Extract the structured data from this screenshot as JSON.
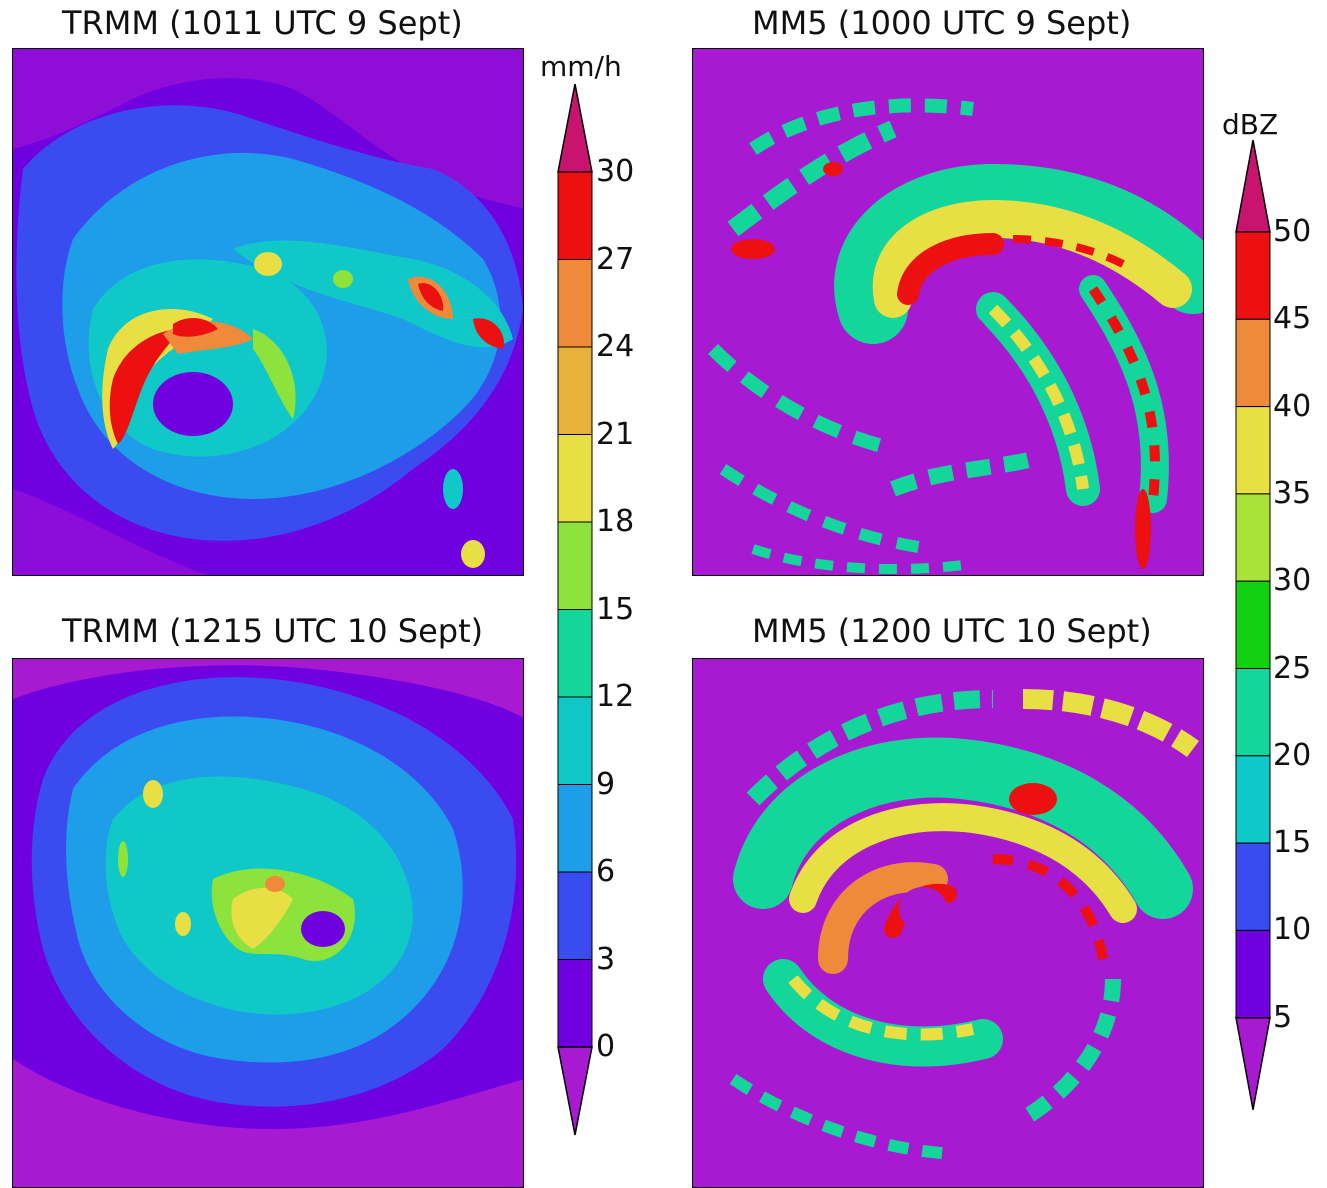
{
  "panels": {
    "trmm_top_title": "TRMM (1011 UTC 9 Sept)",
    "mm5_top_title": "MM5 (1000 UTC 9 Sept)",
    "trmm_bottom_title": "TRMM (1215 UTC 10 Sept)",
    "mm5_bottom_title": "MM5 (1200 UTC 10 Sept)"
  },
  "rain_colorbar": {
    "unit": "mm/h",
    "ticks": [
      "0",
      "3",
      "6",
      "9",
      "12",
      "15",
      "18",
      "21",
      "24",
      "27",
      "30"
    ],
    "colors": [
      "#7000e0",
      "#3a4cf0",
      "#1e9ee8",
      "#10c8c8",
      "#14d69a",
      "#8ee23c",
      "#e8df44",
      "#e8b23a",
      "#ee8a3a",
      "#ec1010"
    ],
    "below_color": "#a81ad2",
    "above_color": "#c8146e"
  },
  "dbz_colorbar": {
    "unit": "dBZ",
    "ticks": [
      "5",
      "10",
      "15",
      "20",
      "25",
      "30",
      "35",
      "40",
      "45",
      "50"
    ],
    "colors": [
      "#7000e0",
      "#3a4cf0",
      "#10c8c8",
      "#14d69a",
      "#10d010",
      "#a8e23a",
      "#e8df44",
      "#ee8a3a",
      "#ec1010"
    ],
    "below_color": "#a81ad2",
    "above_color": "#c8146e"
  }
}
